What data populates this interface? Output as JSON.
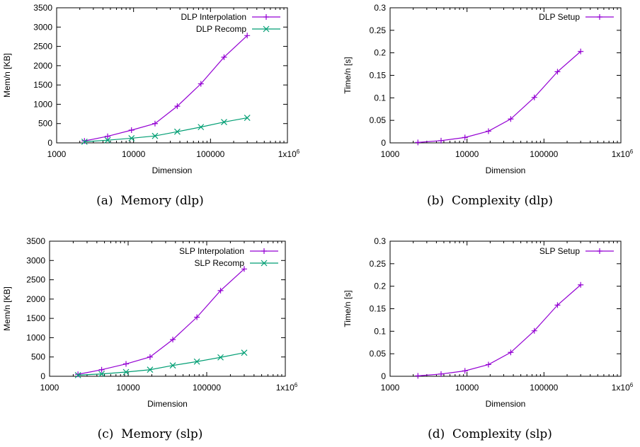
{
  "chart_data": [
    {
      "type": "line",
      "caption": "(a)  Memory (dlp)",
      "xlabel": "Dimension",
      "ylabel": "Mem/n [KB]",
      "xscale": "log",
      "xlim": [
        1000,
        1000000
      ],
      "ylim": [
        0,
        3500
      ],
      "xticks": [
        "1000",
        "10000",
        "100000",
        "1x10"
      ],
      "xtick_sup": "6",
      "yticks": [
        "0",
        "500",
        "1000",
        "1500",
        "2000",
        "2500",
        "3000",
        "3500"
      ],
      "legend_position": "top-right",
      "series": [
        {
          "name": "DLP Interpolation",
          "marker": "plus",
          "color": "#9400d3",
          "x": [
            2300,
            4600,
            9400,
            19000,
            37000,
            75000,
            150000,
            300000
          ],
          "y": [
            50,
            170,
            330,
            500,
            950,
            1530,
            2220,
            2780
          ]
        },
        {
          "name": "DLP Recomp",
          "marker": "cross",
          "color": "#009e73",
          "x": [
            2300,
            4600,
            9400,
            19000,
            37000,
            75000,
            150000,
            300000
          ],
          "y": [
            30,
            70,
            120,
            180,
            290,
            410,
            540,
            650
          ]
        }
      ]
    },
    {
      "type": "line",
      "caption": "(b)  Complexity (dlp)",
      "xlabel": "Dimension",
      "ylabel": "Time/n [s]",
      "xscale": "log",
      "xlim": [
        1000,
        1000000
      ],
      "ylim": [
        0,
        0.3
      ],
      "xticks": [
        "1000",
        "10000",
        "100000",
        "1x10"
      ],
      "xtick_sup": "6",
      "yticks": [
        "0",
        "0.05",
        "0.1",
        "0.15",
        "0.2",
        "0.25",
        "0.3"
      ],
      "legend_position": "top-right",
      "series": [
        {
          "name": "DLP Setup",
          "marker": "plus",
          "color": "#9400d3",
          "x": [
            2300,
            4600,
            9400,
            19000,
            37000,
            75000,
            150000,
            300000
          ],
          "y": [
            0.001,
            0.005,
            0.012,
            0.026,
            0.053,
            0.101,
            0.158,
            0.203
          ]
        }
      ]
    },
    {
      "type": "line",
      "caption": "(c)  Memory (slp)",
      "xlabel": "Dimension",
      "ylabel": "Mem/n [KB]",
      "xscale": "log",
      "xlim": [
        1000,
        1000000
      ],
      "ylim": [
        0,
        3500
      ],
      "xticks": [
        "1000",
        "10000",
        "100000",
        "1x10"
      ],
      "xtick_sup": "6",
      "yticks": [
        "0",
        "500",
        "1000",
        "1500",
        "2000",
        "2500",
        "3000",
        "3500"
      ],
      "legend_position": "top-right",
      "series": [
        {
          "name": "SLP Interpolation",
          "marker": "plus",
          "color": "#9400d3",
          "x": [
            2300,
            4600,
            9400,
            19000,
            37000,
            75000,
            150000,
            300000
          ],
          "y": [
            50,
            170,
            320,
            500,
            950,
            1530,
            2220,
            2780
          ]
        },
        {
          "name": "SLP Recomp",
          "marker": "cross",
          "color": "#009e73",
          "x": [
            2300,
            4600,
            9400,
            19000,
            37000,
            75000,
            150000,
            300000
          ],
          "y": [
            30,
            60,
            110,
            170,
            280,
            380,
            490,
            610
          ]
        }
      ]
    },
    {
      "type": "line",
      "caption": "(d)  Complexity (slp)",
      "xlabel": "Dimension",
      "ylabel": "Time/n [s]",
      "xscale": "log",
      "xlim": [
        1000,
        1000000
      ],
      "ylim": [
        0,
        0.3
      ],
      "xticks": [
        "1000",
        "10000",
        "100000",
        "1x10"
      ],
      "xtick_sup": "6",
      "yticks": [
        "0",
        "0.05",
        "0.1",
        "0.15",
        "0.2",
        "0.25",
        "0.3"
      ],
      "legend_position": "top-right",
      "series": [
        {
          "name": "SLP Setup",
          "marker": "plus",
          "color": "#9400d3",
          "x": [
            2300,
            4600,
            9400,
            19000,
            37000,
            75000,
            150000,
            300000
          ],
          "y": [
            0.001,
            0.005,
            0.012,
            0.026,
            0.053,
            0.101,
            0.158,
            0.203
          ]
        }
      ]
    }
  ]
}
